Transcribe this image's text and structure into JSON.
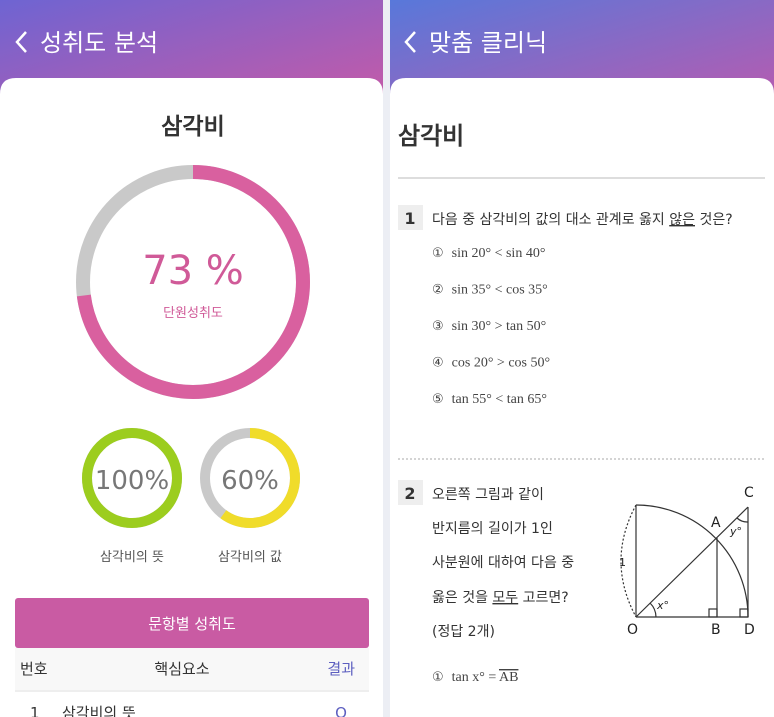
{
  "left": {
    "header": "성취도 분석",
    "title": "삼각비",
    "unit_achievement": {
      "value": 73,
      "label": "73 %",
      "caption": "단원성취도",
      "color": "#d9609f"
    },
    "sub": [
      {
        "value": 100,
        "label": "100%",
        "caption": "삼각비의 뜻",
        "color": "#9ccd1e"
      },
      {
        "value": 60,
        "label": "60%",
        "caption": "삼각비의 값",
        "color": "#f0dc2a"
      }
    ],
    "table": {
      "title": "문항별 성취도",
      "columns": [
        "번호",
        "핵심요소",
        "결과"
      ],
      "rows": [
        [
          "1",
          "삼각비의 뜻",
          "O"
        ]
      ]
    }
  },
  "right": {
    "header": "맞춤 클리닉",
    "title": "삼각비",
    "questions": [
      {
        "number": "1",
        "text_before": "다음 중 삼각비의 값의 대소 관계로 옳지 ",
        "underlined": "않은",
        "text_after": " 것은?",
        "options": [
          {
            "marker": "①",
            "text": "sin 20° < sin 40°"
          },
          {
            "marker": "②",
            "text": "sin 35° < cos 35°"
          },
          {
            "marker": "③",
            "text": "sin 30° > tan 50°"
          },
          {
            "marker": "④",
            "text": "cos 20° > cos 50°"
          },
          {
            "marker": "⑤",
            "text": "tan 55° < tan 65°"
          }
        ]
      },
      {
        "number": "2",
        "lines": [
          "오른쪽 그림과 같이",
          "반지름의 길이가 1인",
          "사분원에 대하여 다음 중"
        ],
        "line4_before": "옳은 것을 ",
        "line4_underlined": "모두",
        "line4_after": " 고르면?",
        "note": "(정답 2개)",
        "options": [
          {
            "marker": "①",
            "text": "tan x° = ",
            "overlined": "AB"
          }
        ]
      }
    ],
    "figure": {
      "C": "C",
      "A": "A",
      "y": "y°",
      "one": "1",
      "x": "x°",
      "O": "O",
      "B": "B",
      "D": "D"
    }
  }
}
